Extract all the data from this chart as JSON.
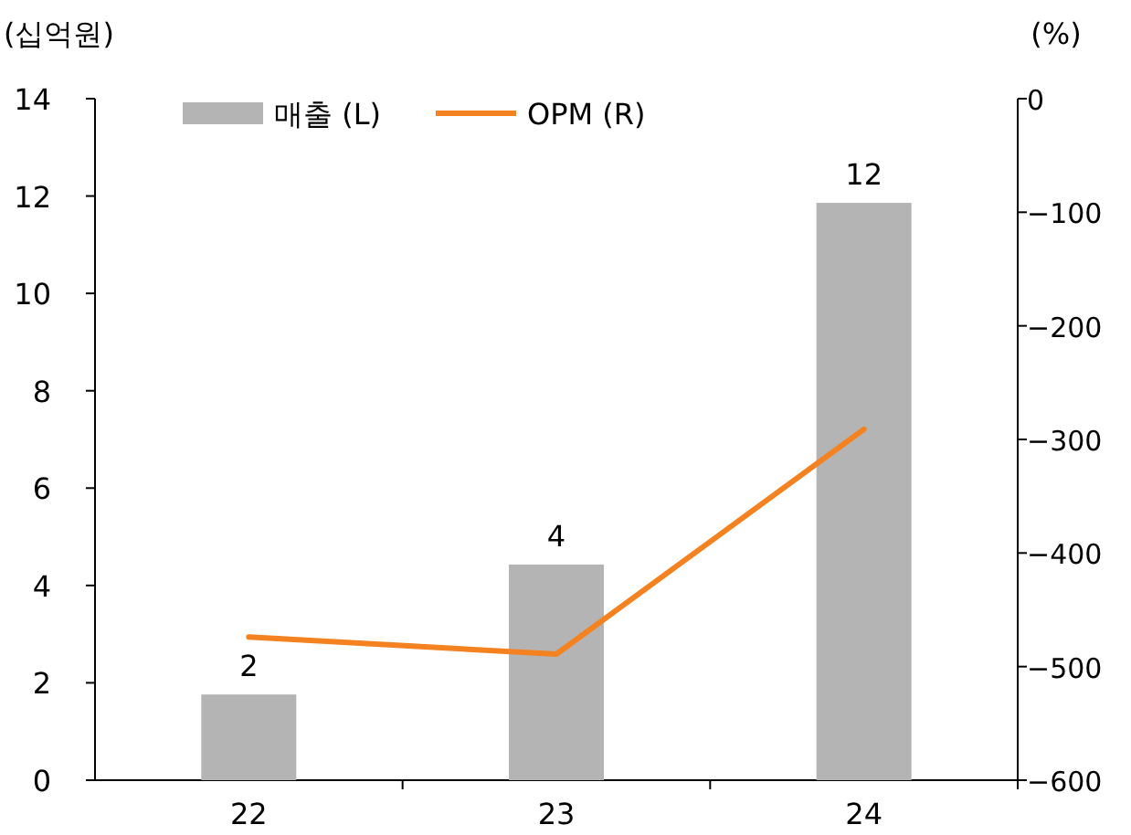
{
  "chart_data": {
    "type": "bar",
    "ylabel": "(십억원)",
    "y2label": "(%)",
    "categories": [
      "22",
      "23",
      "24"
    ],
    "series": [
      {
        "name": "매출 (L)",
        "color": "#b4b4b4",
        "values": [
          1.76,
          4.43,
          11.86
        ],
        "value_labels": [
          "2",
          "4",
          "12"
        ]
      },
      {
        "name": "OPM (R)",
        "type": "line",
        "axis": "y2",
        "color": "#f58220",
        "values": [
          -474,
          -489,
          -291
        ]
      }
    ],
    "ylim": [
      0,
      14
    ],
    "yticks": [
      0,
      2,
      4,
      6,
      8,
      10,
      12,
      14
    ],
    "y2lim": [
      -600,
      0
    ],
    "y2ticks": [
      -600,
      -500,
      -400,
      -300,
      -200,
      -100,
      0
    ],
    "legend": "top left"
  }
}
